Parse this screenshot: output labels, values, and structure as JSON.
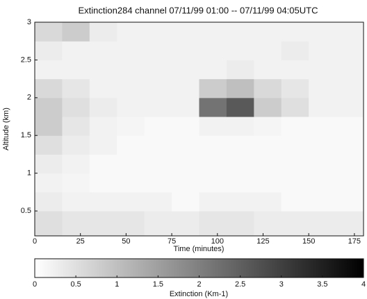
{
  "chart_data": {
    "type": "heatmap",
    "title": "Extinction284 channel 07/11/99   01:00 -- 07/11/99   04:05UTC",
    "x_label": "Time (minutes)",
    "y_label": "Altitude (km)",
    "xlim": [
      0,
      180
    ],
    "xticks": [
      0,
      25,
      50,
      75,
      100,
      125,
      150,
      175
    ],
    "ylim": [
      0.17,
      3
    ],
    "yticks": [
      0.5,
      1,
      1.5,
      2,
      2.5,
      3
    ],
    "x_bins": [
      0,
      15,
      30,
      45,
      60,
      75,
      90,
      105,
      120,
      135,
      150,
      165,
      180
    ],
    "y_bins": [
      0.17,
      0.5,
      0.75,
      1,
      1.25,
      1.5,
      1.75,
      2,
      2.25,
      2.5,
      2.75,
      3
    ],
    "z": [
      [
        0.5,
        0.4,
        0.4,
        0.4,
        0.3,
        0.3,
        0.4,
        0.4,
        0.3,
        0.3,
        0.3,
        0.3
      ],
      [
        0.3,
        0.2,
        0.2,
        0.2,
        0.2,
        0.1,
        0.2,
        0.2,
        0.2,
        0.1,
        0.1,
        0.1
      ],
      [
        0.2,
        0.15,
        0.1,
        0.1,
        0.1,
        0.1,
        0.1,
        0.1,
        0.1,
        0.1,
        0.1,
        0.1
      ],
      [
        0.3,
        0.2,
        0.1,
        0.1,
        0.1,
        0.1,
        0.1,
        0.1,
        0.1,
        0.1,
        0.1,
        0.1
      ],
      [
        0.5,
        0.3,
        0.2,
        0.1,
        0.1,
        0.1,
        0.1,
        0.1,
        0.1,
        0.1,
        0.1,
        0.1
      ],
      [
        0.8,
        0.4,
        0.2,
        0.15,
        0.1,
        0.1,
        0.2,
        0.2,
        0.15,
        0.1,
        0.1,
        0.1
      ],
      [
        0.8,
        0.5,
        0.3,
        0.2,
        0.2,
        0.2,
        2.2,
        2.6,
        0.8,
        0.5,
        0.2,
        0.2
      ],
      [
        0.6,
        0.4,
        0.2,
        0.2,
        0.2,
        0.2,
        0.8,
        1.0,
        0.6,
        0.4,
        0.2,
        0.2
      ],
      [
        0.2,
        0.2,
        0.2,
        0.2,
        0.2,
        0.2,
        0.2,
        0.3,
        0.2,
        0.2,
        0.2,
        0.2
      ],
      [
        0.3,
        0.2,
        0.2,
        0.2,
        0.2,
        0.2,
        0.2,
        0.2,
        0.2,
        0.3,
        0.2,
        0.2
      ],
      [
        0.6,
        0.8,
        0.3,
        0.2,
        0.2,
        0.2,
        0.2,
        0.2,
        0.2,
        0.2,
        0.2,
        0.2
      ]
    ],
    "colorbar": {
      "label": "Extinction (Km-1)",
      "lim": [
        0,
        4
      ],
      "ticks": [
        0,
        0.5,
        1,
        1.5,
        2,
        2.5,
        3,
        3.5,
        4
      ]
    }
  }
}
